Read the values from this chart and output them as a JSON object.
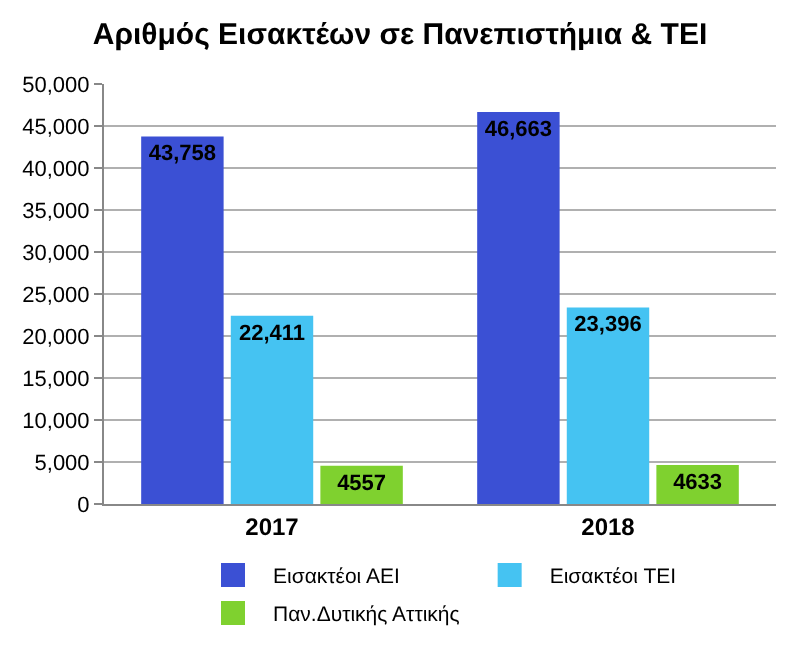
{
  "chart_data": {
    "type": "bar",
    "title": "Αριθμός Εισακτέων σε Πανεπιστήμια & ΤΕΙ",
    "categories": [
      "2017",
      "2018"
    ],
    "series": [
      {
        "name": "Εισακτέοι ΑΕΙ",
        "color": "#3b50d4",
        "values": [
          43758,
          46663
        ],
        "value_labels": [
          "43,758",
          "46,663"
        ]
      },
      {
        "name": "Εισακτέοι ΤΕΙ",
        "color": "#45c3f2",
        "values": [
          22411,
          23396
        ],
        "value_labels": [
          "22,411",
          "23,396"
        ]
      },
      {
        "name": "Παν.Δυτικής Αττικής",
        "color": "#7fd12f",
        "values": [
          4557,
          4633
        ],
        "value_labels": [
          "4557",
          "4633"
        ]
      }
    ],
    "ylim": [
      0,
      50000
    ],
    "yticks": [
      {
        "value": 0,
        "label": "0"
      },
      {
        "value": 5000,
        "label": "5,000"
      },
      {
        "value": 10000,
        "label": "10,000"
      },
      {
        "value": 15000,
        "label": "15,000"
      },
      {
        "value": 20000,
        "label": "20,000"
      },
      {
        "value": 25000,
        "label": "25,000"
      },
      {
        "value": 30000,
        "label": "30,000"
      },
      {
        "value": 35000,
        "label": "35,000"
      },
      {
        "value": 40000,
        "label": "40,000"
      },
      {
        "value": 45000,
        "label": "45,000"
      },
      {
        "value": 50000,
        "label": "50,000"
      }
    ],
    "grid": "y",
    "legend": "bottom"
  }
}
